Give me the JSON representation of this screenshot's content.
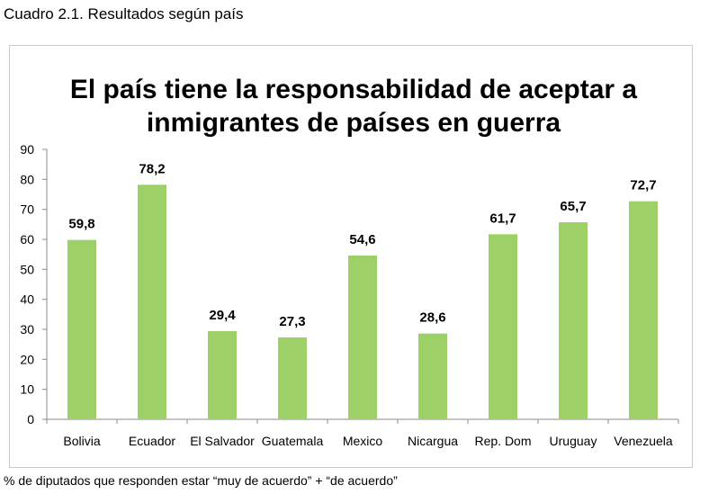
{
  "caption": "Cuadro 2.1. Resultados según país",
  "footnote": "% de diputados que responden estar “muy de acuerdo” + “de acuerdo”",
  "chart_data": {
    "type": "bar",
    "title_lines": [
      "El país tiene la responsabilidad de aceptar a",
      "inmigrantes de países en guerra"
    ],
    "categories": [
      "Bolivia",
      "Ecuador",
      "El Salvador",
      "Guatemala",
      "Mexico",
      "Nicargua",
      "Rep. Dom",
      "Uruguay",
      "Venezuela"
    ],
    "values": [
      59.8,
      78.2,
      29.4,
      27.3,
      54.6,
      28.6,
      61.7,
      65.7,
      72.7
    ],
    "value_labels": [
      "59,8",
      "78,2",
      "29,4",
      "27,3",
      "54,6",
      "28,6",
      "61,7",
      "65,7",
      "72,7"
    ],
    "ylim": [
      0,
      90
    ],
    "yticks": [
      0,
      10,
      20,
      30,
      40,
      50,
      60,
      70,
      80,
      90
    ],
    "xlabel": "",
    "ylabel": "",
    "grid": false,
    "bar_color": "#9dd066"
  }
}
